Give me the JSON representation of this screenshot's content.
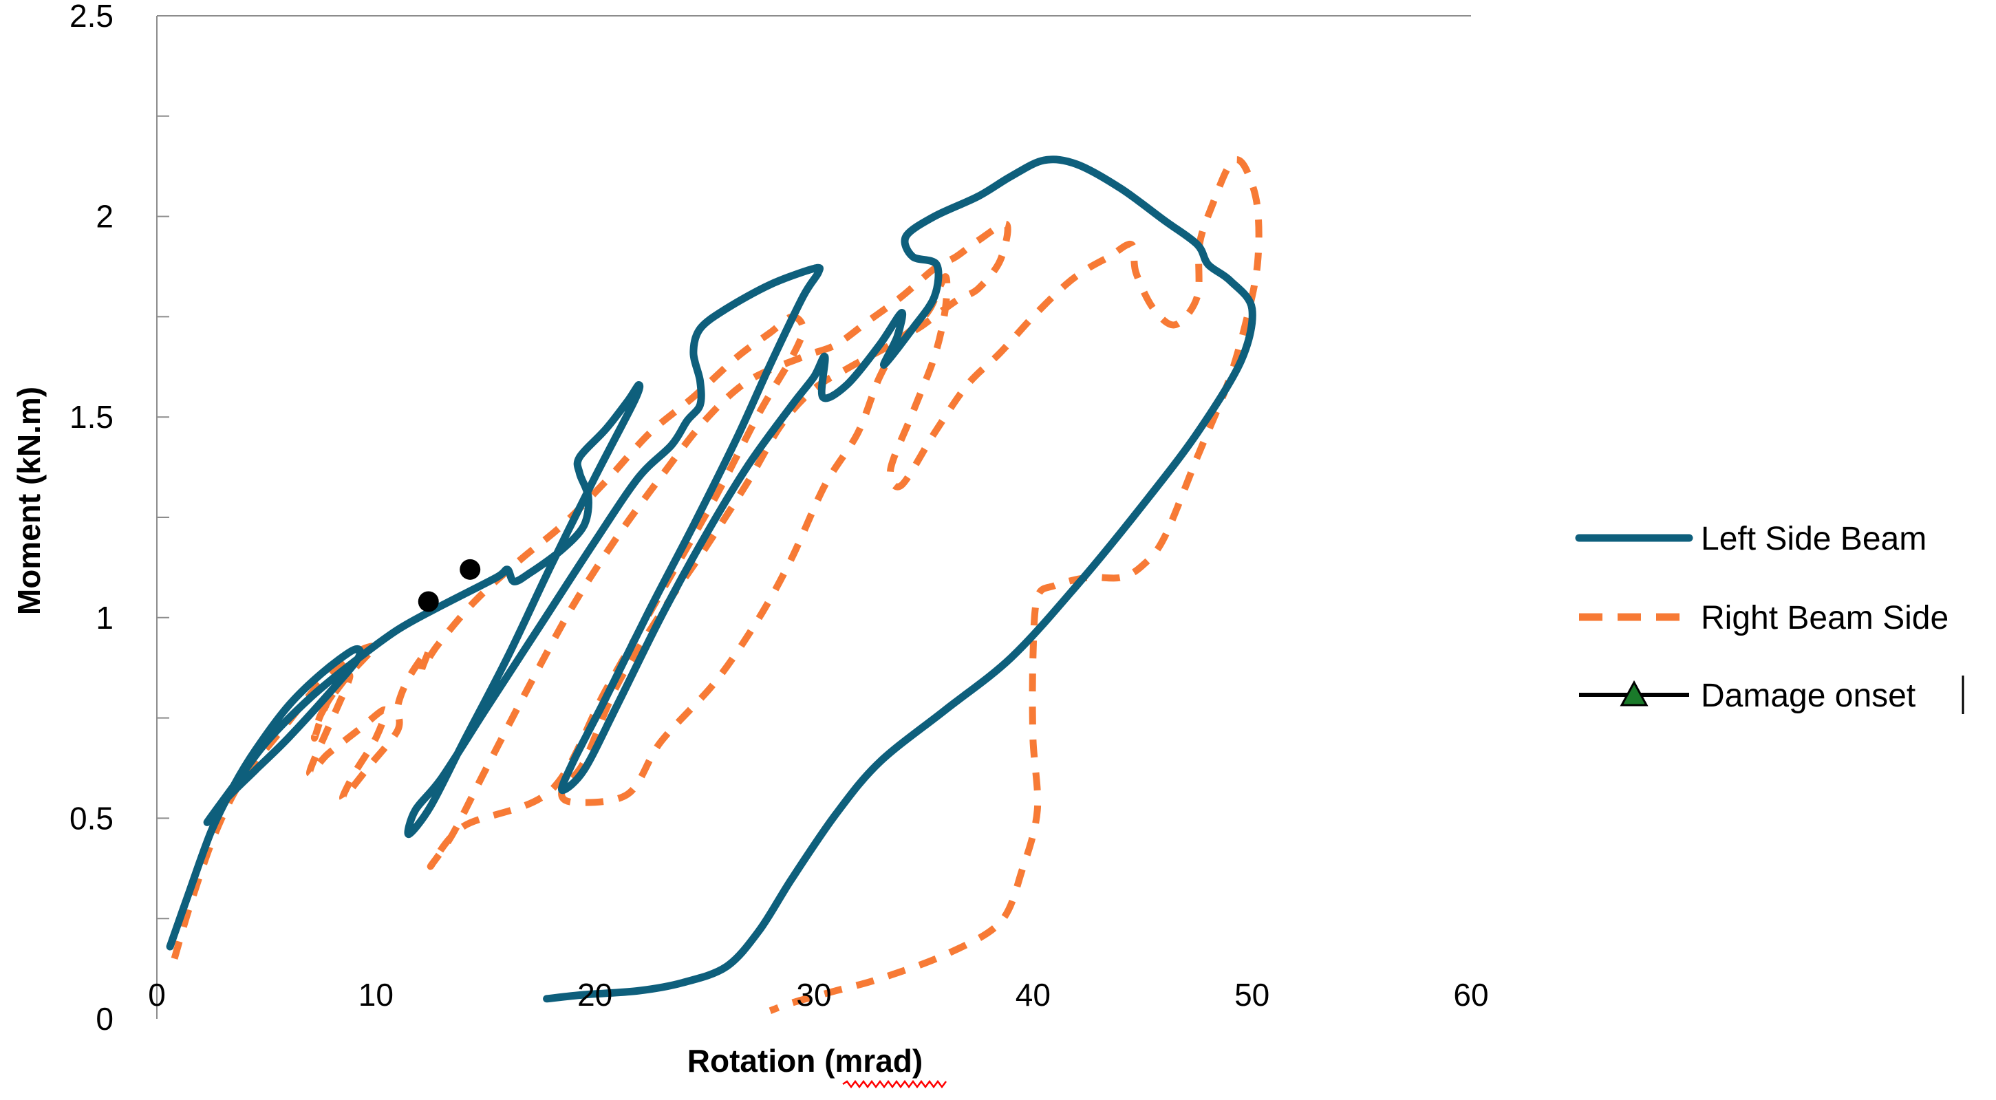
{
  "chart_data": {
    "type": "line",
    "title": "",
    "xlabel": "Rotation (mrad)",
    "ylabel": "Moment (kN.m)",
    "xlim": [
      0,
      60
    ],
    "ylim": [
      0,
      2.5
    ],
    "x_ticks": [
      0,
      10,
      20,
      30,
      40,
      50,
      60
    ],
    "y_ticks": [
      0,
      0.5,
      1,
      1.5,
      2,
      2.5
    ],
    "x_tick_labels": [
      "0",
      "10",
      "20",
      "30",
      "40",
      "50",
      "60"
    ],
    "y_tick_labels": [
      "0",
      "0.5",
      "1",
      "1.5",
      "2",
      "2.5"
    ],
    "grid": false,
    "legend_position": "right",
    "series": [
      {
        "name": "Left Side Beam",
        "color": "#0e5f7c",
        "style": "solid",
        "points": [
          [
            0.6,
            0.18
          ],
          [
            1.5,
            0.32
          ],
          [
            2.5,
            0.47
          ],
          [
            3.5,
            0.58
          ],
          [
            4.5,
            0.67
          ],
          [
            6.0,
            0.78
          ],
          [
            7.5,
            0.86
          ],
          [
            9.0,
            0.92
          ],
          [
            9.2,
            0.9
          ],
          [
            8.0,
            0.82
          ],
          [
            6.0,
            0.7
          ],
          [
            4.5,
            0.62
          ],
          [
            3.2,
            0.55
          ],
          [
            2.3,
            0.49
          ],
          [
            3.5,
            0.58
          ],
          [
            5.0,
            0.69
          ],
          [
            7.0,
            0.8
          ],
          [
            9.0,
            0.89
          ],
          [
            11.0,
            0.97
          ],
          [
            13.0,
            1.03
          ],
          [
            15.5,
            1.1
          ],
          [
            16.0,
            1.12
          ],
          [
            16.3,
            1.09
          ],
          [
            17.0,
            1.11
          ],
          [
            18.5,
            1.17
          ],
          [
            19.5,
            1.23
          ],
          [
            19.7,
            1.3
          ],
          [
            19.3,
            1.36
          ],
          [
            19.3,
            1.4
          ],
          [
            20.5,
            1.47
          ],
          [
            21.5,
            1.54
          ],
          [
            22.0,
            1.58
          ],
          [
            21.8,
            1.54
          ],
          [
            20.0,
            1.35
          ],
          [
            18.0,
            1.13
          ],
          [
            16.0,
            0.9
          ],
          [
            14.0,
            0.69
          ],
          [
            12.5,
            0.53
          ],
          [
            11.5,
            0.46
          ],
          [
            11.8,
            0.52
          ],
          [
            13.0,
            0.6
          ],
          [
            15.0,
            0.77
          ],
          [
            17.5,
            0.98
          ],
          [
            20.0,
            1.19
          ],
          [
            22.0,
            1.35
          ],
          [
            23.5,
            1.43
          ],
          [
            24.2,
            1.49
          ],
          [
            24.8,
            1.53
          ],
          [
            24.8,
            1.59
          ],
          [
            24.5,
            1.66
          ],
          [
            24.8,
            1.72
          ],
          [
            26.0,
            1.77
          ],
          [
            28.0,
            1.83
          ],
          [
            30.0,
            1.87
          ],
          [
            30.2,
            1.86
          ],
          [
            29.5,
            1.8
          ],
          [
            28.0,
            1.63
          ],
          [
            26.5,
            1.45
          ],
          [
            24.5,
            1.23
          ],
          [
            22.5,
            1.02
          ],
          [
            20.5,
            0.8
          ],
          [
            19.0,
            0.64
          ],
          [
            18.5,
            0.57
          ],
          [
            19.5,
            0.62
          ],
          [
            21.0,
            0.78
          ],
          [
            23.0,
            1.0
          ],
          [
            25.0,
            1.2
          ],
          [
            27.0,
            1.38
          ],
          [
            29.0,
            1.53
          ],
          [
            30.0,
            1.6
          ],
          [
            30.5,
            1.65
          ],
          [
            30.4,
            1.55
          ],
          [
            31.5,
            1.58
          ],
          [
            33.0,
            1.68
          ],
          [
            34.0,
            1.76
          ],
          [
            33.8,
            1.7
          ],
          [
            33.2,
            1.63
          ],
          [
            34.5,
            1.72
          ],
          [
            35.5,
            1.8
          ],
          [
            35.6,
            1.88
          ],
          [
            34.5,
            1.9
          ],
          [
            34.2,
            1.95
          ],
          [
            35.5,
            2.0
          ],
          [
            37.5,
            2.05
          ],
          [
            39.0,
            2.1
          ],
          [
            40.5,
            2.14
          ],
          [
            42.0,
            2.13
          ],
          [
            44.0,
            2.07
          ],
          [
            46.0,
            1.99
          ],
          [
            47.5,
            1.93
          ],
          [
            48.0,
            1.88
          ],
          [
            49.0,
            1.84
          ],
          [
            50.0,
            1.77
          ],
          [
            49.5,
            1.64
          ],
          [
            47.5,
            1.46
          ],
          [
            45.0,
            1.28
          ],
          [
            42.0,
            1.08
          ],
          [
            39.0,
            0.9
          ],
          [
            36.0,
            0.77
          ],
          [
            33.0,
            0.64
          ],
          [
            31.0,
            0.51
          ],
          [
            29.0,
            0.35
          ],
          [
            27.5,
            0.22
          ],
          [
            26.0,
            0.13
          ],
          [
            24.0,
            0.09
          ],
          [
            22.0,
            0.07
          ],
          [
            19.5,
            0.06
          ],
          [
            17.8,
            0.05
          ]
        ]
      },
      {
        "name": "Right Beam Side",
        "color": "#f77a35",
        "style": "dashed",
        "points": [
          [
            0.8,
            0.15
          ],
          [
            1.5,
            0.28
          ],
          [
            2.5,
            0.44
          ],
          [
            3.5,
            0.56
          ],
          [
            4.5,
            0.64
          ],
          [
            6.0,
            0.74
          ],
          [
            7.5,
            0.84
          ],
          [
            9.0,
            0.91
          ],
          [
            10.0,
            0.93
          ],
          [
            9.5,
            0.9
          ],
          [
            8.5,
            0.84
          ],
          [
            7.5,
            0.76
          ],
          [
            7.2,
            0.7
          ],
          [
            7.8,
            0.79
          ],
          [
            8.8,
            0.85
          ],
          [
            7.0,
            0.62
          ],
          [
            7.8,
            0.66
          ],
          [
            9.2,
            0.72
          ],
          [
            10.4,
            0.77
          ],
          [
            10.0,
            0.7
          ],
          [
            9.0,
            0.61
          ],
          [
            8.5,
            0.55
          ],
          [
            9.7,
            0.63
          ],
          [
            11.0,
            0.72
          ],
          [
            11.0,
            0.78
          ],
          [
            11.5,
            0.85
          ],
          [
            12.4,
            0.92
          ],
          [
            12.1,
            0.87
          ],
          [
            12.8,
            0.93
          ],
          [
            14.5,
            1.04
          ],
          [
            16.5,
            1.14
          ],
          [
            18.5,
            1.23
          ],
          [
            20.5,
            1.34
          ],
          [
            22.5,
            1.46
          ],
          [
            24.5,
            1.55
          ],
          [
            26.5,
            1.65
          ],
          [
            28.0,
            1.71
          ],
          [
            29.0,
            1.75
          ],
          [
            29.5,
            1.72
          ],
          [
            29.0,
            1.65
          ],
          [
            27.5,
            1.51
          ],
          [
            25.5,
            1.3
          ],
          [
            23.0,
            1.06
          ],
          [
            20.5,
            0.82
          ],
          [
            18.0,
            0.57
          ],
          [
            14.0,
            0.48
          ],
          [
            12.5,
            0.38
          ],
          [
            13.5,
            0.46
          ],
          [
            15.0,
            0.62
          ],
          [
            17.0,
            0.83
          ],
          [
            19.0,
            1.03
          ],
          [
            21.0,
            1.2
          ],
          [
            23.0,
            1.35
          ],
          [
            25.0,
            1.49
          ],
          [
            27.0,
            1.59
          ],
          [
            29.5,
            1.65
          ],
          [
            31.0,
            1.68
          ],
          [
            32.5,
            1.74
          ],
          [
            34.0,
            1.8
          ],
          [
            35.5,
            1.87
          ],
          [
            36.5,
            1.9
          ],
          [
            37.5,
            1.94
          ],
          [
            38.8,
            1.98
          ],
          [
            38.5,
            1.89
          ],
          [
            37.5,
            1.82
          ],
          [
            36.5,
            1.79
          ],
          [
            35.0,
            1.73
          ],
          [
            34.0,
            1.69
          ],
          [
            33.0,
            1.6
          ],
          [
            32.0,
            1.46
          ],
          [
            30.5,
            1.33
          ],
          [
            29.0,
            1.15
          ],
          [
            27.5,
            1.0
          ],
          [
            25.5,
            0.84
          ],
          [
            23.0,
            0.69
          ],
          [
            21.5,
            0.56
          ],
          [
            19.0,
            0.54
          ],
          [
            18.5,
            0.57
          ],
          [
            19.5,
            0.64
          ],
          [
            21.0,
            0.83
          ],
          [
            23.0,
            1.01
          ],
          [
            25.0,
            1.17
          ],
          [
            27.0,
            1.34
          ],
          [
            28.5,
            1.48
          ],
          [
            30.0,
            1.57
          ],
          [
            31.5,
            1.62
          ],
          [
            32.5,
            1.65
          ],
          [
            33.5,
            1.68
          ],
          [
            34.5,
            1.72
          ],
          [
            35.3,
            1.77
          ],
          [
            36.0,
            1.85
          ],
          [
            36.0,
            1.77
          ],
          [
            35.5,
            1.65
          ],
          [
            34.5,
            1.51
          ],
          [
            33.5,
            1.37
          ],
          [
            34.0,
            1.33
          ],
          [
            35.5,
            1.46
          ],
          [
            37.0,
            1.58
          ],
          [
            38.5,
            1.66
          ],
          [
            40.0,
            1.75
          ],
          [
            41.5,
            1.83
          ],
          [
            42.5,
            1.87
          ],
          [
            43.5,
            1.9
          ],
          [
            44.5,
            1.93
          ],
          [
            44.7,
            1.86
          ],
          [
            45.5,
            1.77
          ],
          [
            46.5,
            1.73
          ],
          [
            47.5,
            1.8
          ],
          [
            47.6,
            1.93
          ],
          [
            48.2,
            2.03
          ],
          [
            49.0,
            2.13
          ],
          [
            49.6,
            2.13
          ],
          [
            50.2,
            2.04
          ],
          [
            50.3,
            1.92
          ],
          [
            50.0,
            1.8
          ],
          [
            49.0,
            1.6
          ],
          [
            47.5,
            1.4
          ],
          [
            46.0,
            1.2
          ],
          [
            45.0,
            1.13
          ],
          [
            44.0,
            1.1
          ],
          [
            42.5,
            1.1
          ],
          [
            41.0,
            1.08
          ],
          [
            40.2,
            1.05
          ],
          [
            40.0,
            0.9
          ],
          [
            40.0,
            0.7
          ],
          [
            40.2,
            0.52
          ],
          [
            39.5,
            0.37
          ],
          [
            38.5,
            0.24
          ],
          [
            36.0,
            0.16
          ],
          [
            33.0,
            0.1
          ],
          [
            31.0,
            0.07
          ],
          [
            29.0,
            0.04
          ],
          [
            28.0,
            0.02
          ]
        ]
      }
    ],
    "damage_onset_points": [
      [
        12.4,
        1.04
      ],
      [
        14.3,
        1.12
      ]
    ],
    "legend": [
      {
        "label": "Left Side Beam",
        "style": "solid",
        "color": "#0e5f7c"
      },
      {
        "label": "Right Beam Side",
        "style": "dashed",
        "color": "#f77a35"
      },
      {
        "label": "Damage onset",
        "style": "line-triangle",
        "color": "#000000",
        "marker_color": "#1a7a2a"
      }
    ]
  }
}
